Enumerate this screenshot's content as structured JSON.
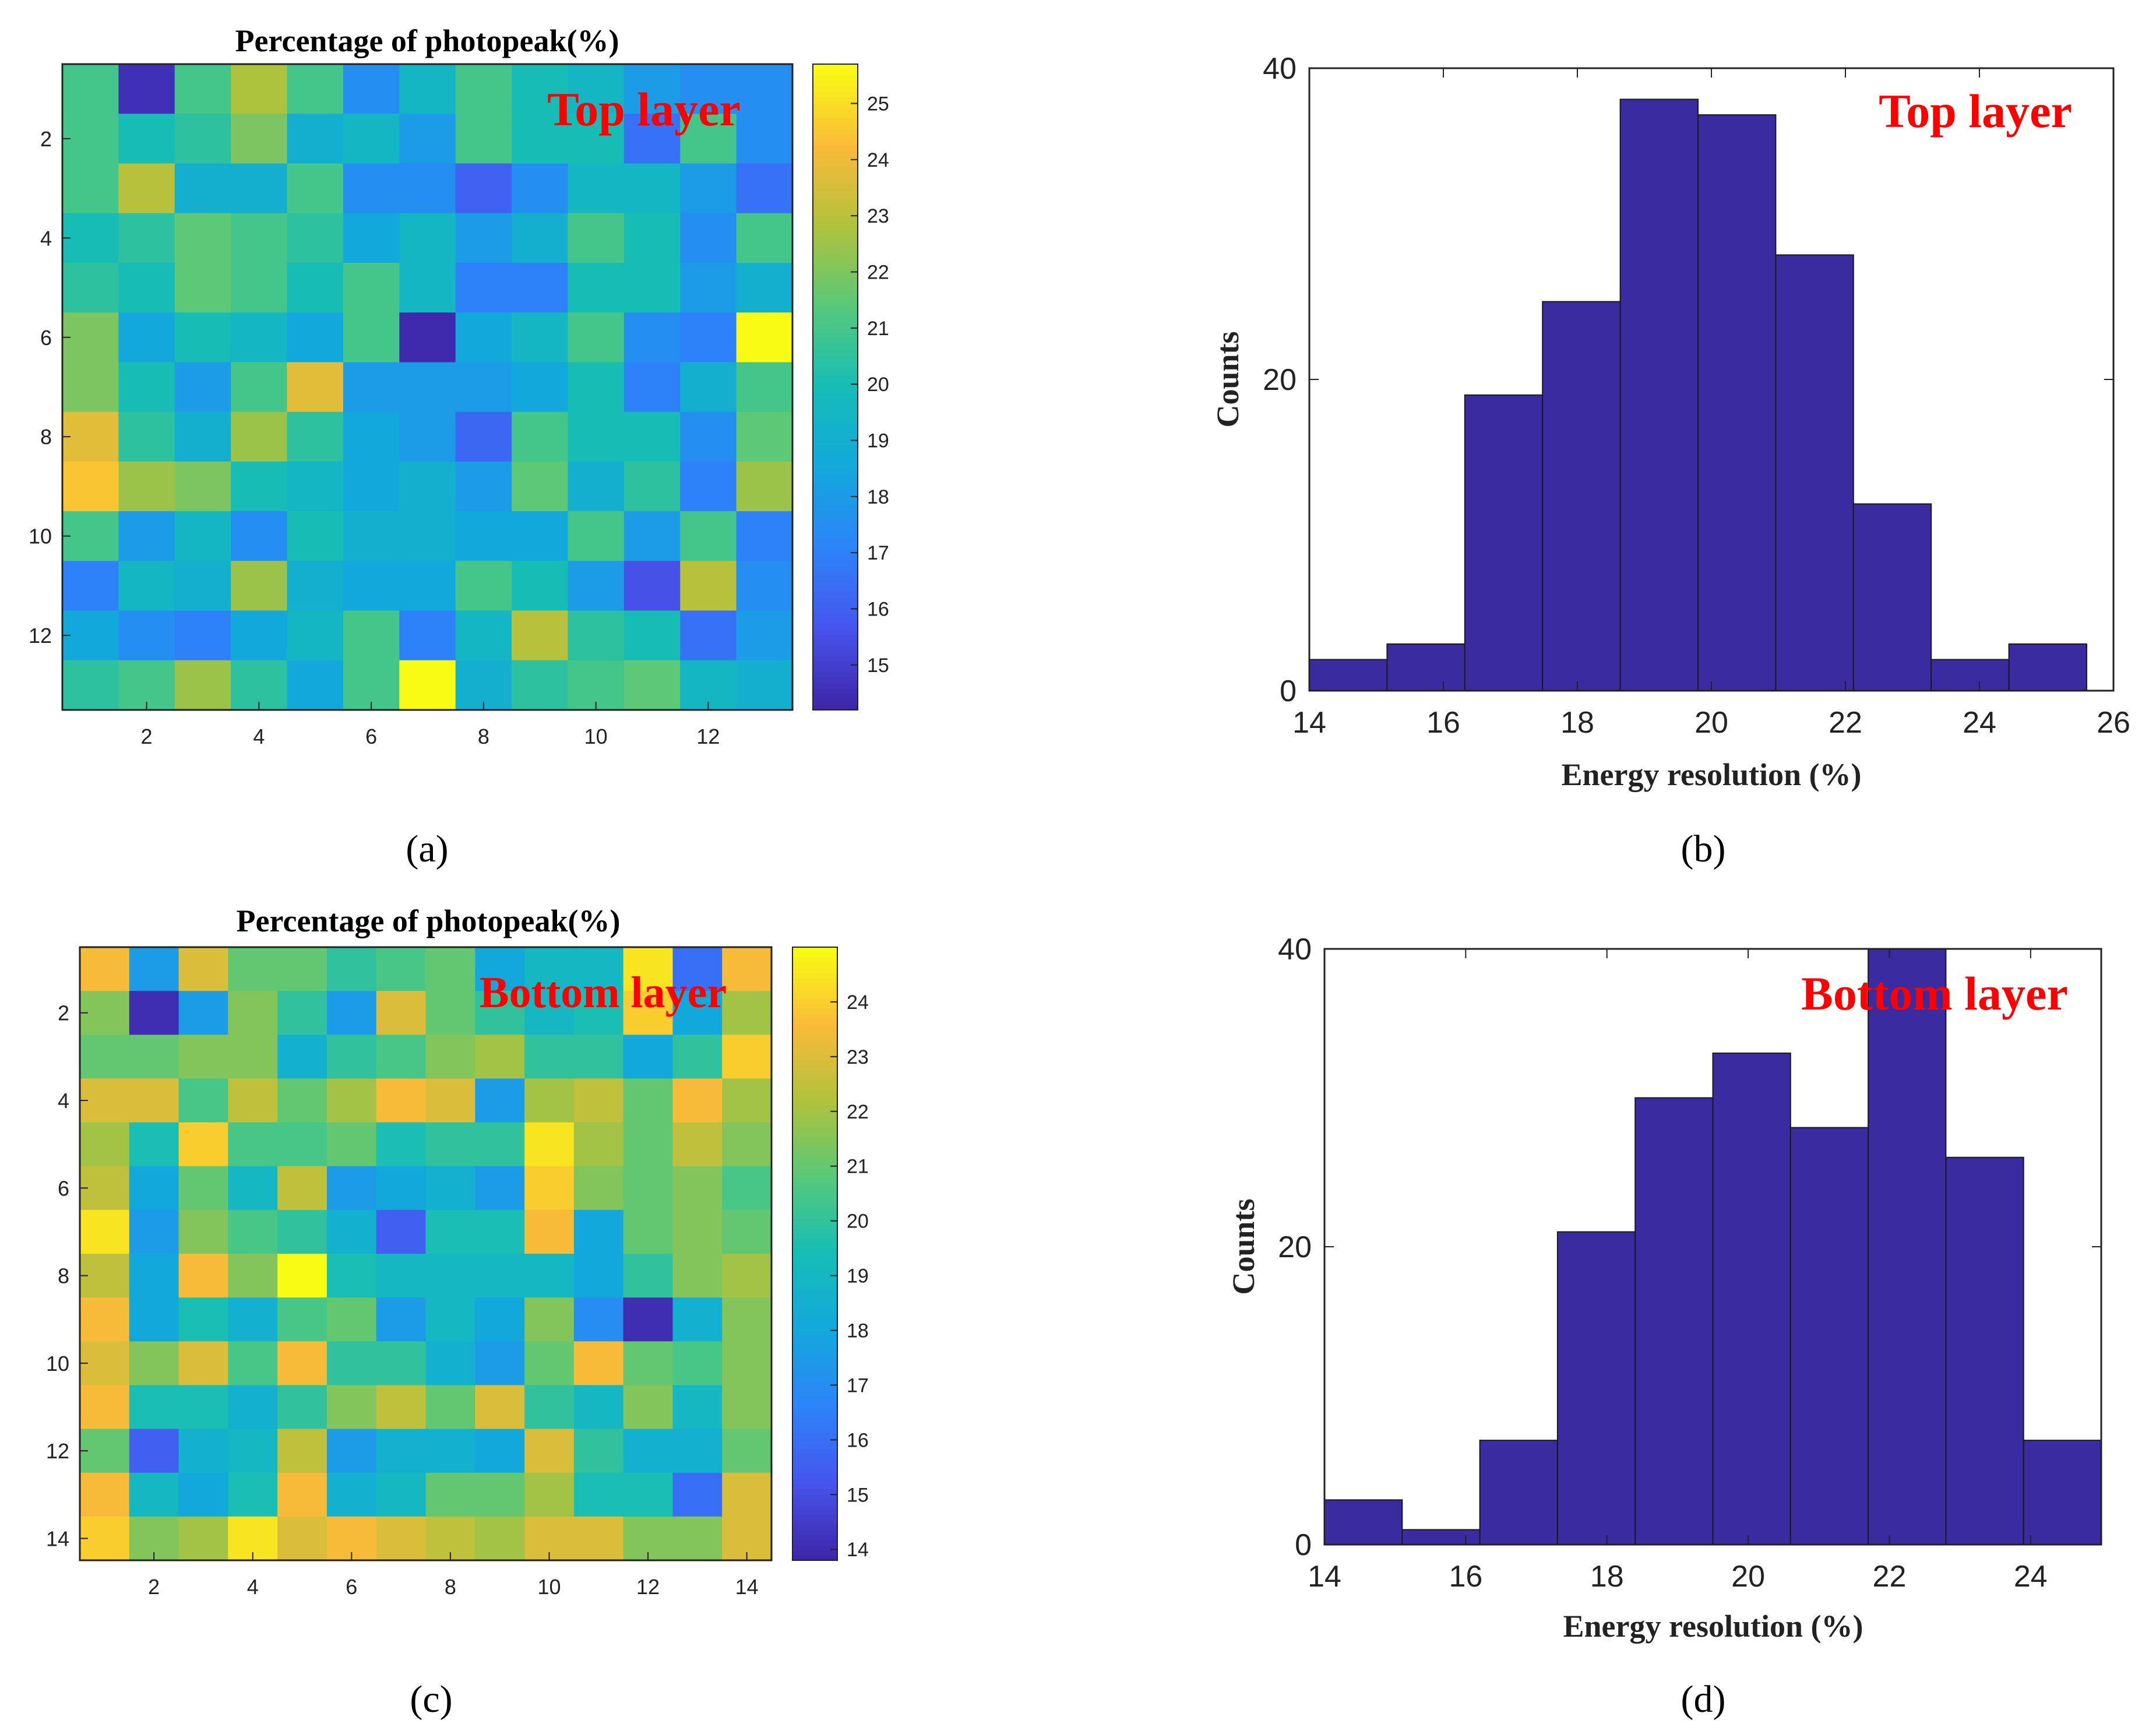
{
  "figure": {
    "panel_labels": [
      "(a)",
      "(b)",
      "(c)",
      "(d)"
    ]
  },
  "chart_data": [
    {
      "id": "a",
      "type": "heatmap",
      "title": "Percentage of photopeak(%)",
      "annotation": "Top layer",
      "annotation_color": "#ff0000",
      "xlabel": "",
      "ylabel": "",
      "rows": 13,
      "cols": 13,
      "xticks": [
        2,
        4,
        6,
        8,
        10,
        12
      ],
      "yticks": [
        2,
        4,
        6,
        8,
        10,
        12
      ],
      "colorbar": {
        "min": 14.2,
        "max": 25.7,
        "ticks": [
          15,
          16,
          17,
          18,
          19,
          20,
          21,
          22,
          23,
          24,
          25
        ]
      },
      "colormap": "parula",
      "values": [
        [
          21.0,
          14.5,
          21.0,
          22.8,
          21.0,
          17.5,
          19.5,
          21.0,
          20.0,
          19.5,
          18.0,
          17.5,
          17.5
        ],
        [
          21.0,
          20.0,
          20.5,
          22.0,
          19.0,
          19.5,
          18.0,
          21.0,
          20.0,
          20.0,
          16.5,
          21.0,
          17.5
        ],
        [
          21.0,
          23.0,
          19.0,
          19.0,
          21.0,
          17.5,
          17.5,
          16.0,
          17.5,
          19.5,
          19.5,
          18.0,
          16.5
        ],
        [
          20.0,
          20.5,
          21.5,
          21.0,
          20.5,
          18.5,
          19.5,
          18.0,
          19.0,
          21.0,
          20.0,
          17.5,
          21.0
        ],
        [
          20.5,
          20.0,
          21.5,
          21.0,
          20.0,
          21.0,
          19.5,
          17.0,
          17.0,
          20.0,
          20.0,
          18.0,
          19.0
        ],
        [
          22.0,
          18.5,
          20.0,
          19.5,
          18.5,
          21.0,
          14.3,
          18.5,
          19.5,
          21.0,
          17.5,
          17.0,
          25.7
        ],
        [
          22.0,
          20.0,
          18.0,
          21.0,
          23.8,
          18.0,
          18.0,
          18.0,
          18.5,
          20.0,
          17.0,
          19.0,
          21.0
        ],
        [
          23.8,
          20.5,
          19.0,
          22.5,
          20.5,
          18.5,
          18.0,
          16.2,
          21.0,
          20.0,
          20.0,
          17.5,
          21.5
        ],
        [
          24.5,
          22.5,
          22.0,
          20.0,
          19.5,
          18.5,
          19.0,
          18.0,
          21.5,
          19.0,
          20.5,
          17.0,
          22.5
        ],
        [
          21.0,
          18.0,
          19.5,
          17.5,
          20.0,
          19.0,
          19.0,
          18.5,
          18.5,
          21.0,
          18.0,
          21.0,
          17.0
        ],
        [
          17.0,
          19.5,
          19.0,
          22.5,
          19.0,
          18.5,
          18.5,
          21.0,
          20.0,
          18.0,
          15.5,
          23.0,
          17.5
        ],
        [
          18.5,
          17.5,
          17.0,
          18.5,
          19.5,
          21.0,
          17.0,
          19.5,
          23.0,
          20.5,
          20.0,
          16.5,
          18.0
        ],
        [
          20.5,
          21.0,
          22.5,
          20.5,
          18.5,
          21.0,
          25.7,
          19.0,
          20.5,
          21.0,
          21.5,
          19.5,
          19.0
        ]
      ]
    },
    {
      "id": "b",
      "type": "bar",
      "histogram": true,
      "annotation": "Top layer",
      "annotation_color": "#ff0000",
      "title": "",
      "xlabel": "Energy resolution (%)",
      "ylabel": "Counts",
      "xlim": [
        14,
        26
      ],
      "ylim": [
        0,
        40
      ],
      "xticks": [
        14,
        16,
        18,
        20,
        22,
        24,
        26
      ],
      "yticks": [
        0,
        20,
        40
      ],
      "bin_edges": [
        14.0,
        15.16,
        16.32,
        17.48,
        18.64,
        19.8,
        20.96,
        22.12,
        23.28,
        24.44,
        25.6
      ],
      "values": [
        2,
        3,
        19,
        25,
        38,
        37,
        28,
        12,
        2,
        3
      ],
      "bar_color": "#3a2ba0"
    },
    {
      "id": "c",
      "type": "heatmap",
      "title": "Percentage of photopeak(%)",
      "annotation": "Bottom layer",
      "annotation_color": "#ff0000",
      "xlabel": "",
      "ylabel": "",
      "rows": 14,
      "cols": 14,
      "xticks": [
        2,
        4,
        6,
        8,
        10,
        12,
        14
      ],
      "yticks": [
        2,
        4,
        6,
        8,
        10,
        12,
        14
      ],
      "colorbar": {
        "min": 13.8,
        "max": 25.0,
        "ticks": [
          14,
          15,
          16,
          17,
          18,
          19,
          20,
          21,
          22,
          23,
          24
        ]
      },
      "colormap": "parula",
      "values": [
        [
          23.5,
          17.5,
          23.0,
          21.0,
          21.0,
          20.0,
          20.5,
          21.0,
          18.0,
          19.0,
          19.0,
          24.5,
          16.0,
          23.5
        ],
        [
          21.5,
          14.0,
          17.5,
          21.5,
          20.0,
          17.5,
          23.0,
          21.0,
          20.0,
          19.0,
          19.5,
          24.0,
          18.0,
          22.0
        ],
        [
          21.0,
          21.0,
          21.5,
          21.5,
          18.5,
          20.0,
          20.5,
          21.5,
          22.0,
          20.0,
          20.0,
          18.0,
          20.0,
          24.0
        ],
        [
          23.0,
          23.0,
          20.5,
          22.5,
          21.0,
          22.0,
          23.5,
          23.0,
          17.5,
          22.0,
          22.5,
          21.0,
          23.5,
          22.0
        ],
        [
          22.0,
          19.5,
          24.0,
          20.5,
          20.5,
          21.0,
          19.5,
          20.0,
          20.0,
          24.5,
          22.0,
          21.0,
          22.5,
          21.5
        ],
        [
          22.5,
          18.0,
          21.0,
          19.0,
          22.5,
          17.5,
          18.0,
          18.5,
          17.5,
          24.0,
          21.5,
          21.0,
          21.5,
          20.5
        ],
        [
          24.5,
          17.5,
          21.5,
          20.5,
          20.0,
          18.5,
          15.5,
          19.5,
          19.5,
          23.5,
          18.0,
          21.0,
          21.5,
          21.0
        ],
        [
          22.5,
          18.0,
          23.5,
          21.5,
          25.0,
          19.5,
          19.0,
          19.0,
          19.0,
          19.0,
          18.0,
          20.0,
          21.5,
          22.0
        ],
        [
          23.5,
          18.0,
          19.5,
          18.5,
          20.5,
          21.0,
          17.5,
          19.0,
          18.0,
          21.5,
          17.0,
          14.0,
          18.5,
          21.5
        ],
        [
          23.0,
          21.5,
          23.0,
          20.5,
          23.5,
          20.0,
          20.0,
          18.5,
          17.5,
          21.0,
          23.5,
          21.0,
          20.5,
          21.5
        ],
        [
          23.5,
          19.5,
          19.5,
          18.5,
          20.0,
          21.5,
          22.5,
          21.0,
          23.0,
          20.0,
          19.0,
          21.5,
          19.0,
          21.5
        ],
        [
          21.0,
          15.5,
          18.5,
          19.0,
          22.5,
          17.5,
          18.5,
          18.5,
          18.0,
          23.0,
          20.0,
          18.5,
          18.5,
          21.0
        ],
        [
          23.5,
          19.0,
          18.0,
          19.5,
          23.5,
          18.5,
          19.0,
          21.0,
          21.0,
          22.0,
          19.5,
          19.5,
          16.0,
          23.0
        ],
        [
          24.0,
          21.5,
          22.0,
          24.5,
          23.0,
          23.5,
          23.0,
          22.5,
          22.0,
          23.0,
          23.0,
          21.5,
          21.5,
          23.0
        ]
      ]
    },
    {
      "id": "d",
      "type": "bar",
      "histogram": true,
      "annotation": "Bottom layer",
      "annotation_color": "#ff0000",
      "title": "",
      "xlabel": "Energy resolution (%)",
      "ylabel": "Counts",
      "xlim": [
        14,
        25
      ],
      "ylim": [
        0,
        40
      ],
      "xticks": [
        14,
        16,
        18,
        20,
        22,
        24
      ],
      "yticks": [
        0,
        20,
        40
      ],
      "bin_edges": [
        14.0,
        15.1,
        16.2,
        17.3,
        18.4,
        19.5,
        20.6,
        21.7,
        22.8,
        23.9,
        25.0
      ],
      "values": [
        3,
        1,
        7,
        21,
        30,
        33,
        28,
        40,
        26,
        7
      ],
      "bar_color": "#3a2ba0"
    }
  ]
}
